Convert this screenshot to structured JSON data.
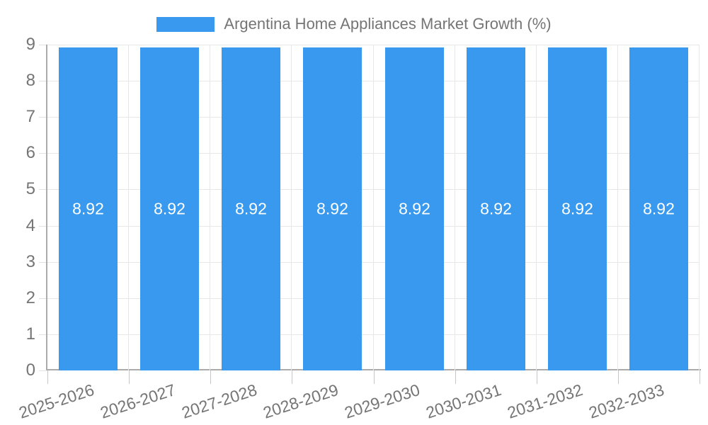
{
  "legend": {
    "label": "Argentina Home Appliances Market Growth (%)"
  },
  "colors": {
    "background": "#FFFFFF",
    "bar": "#3899EE",
    "bar_label": "#FFFFFF",
    "text": "#757575",
    "axis_line": "#ABABAB",
    "gridline": "#E7E7E7",
    "xtick": "#C6C6C6",
    "ytick": "#E2E2E2"
  },
  "chart_data": {
    "type": "bar",
    "title": "",
    "legend_entries": [
      "Argentina Home Appliances Market Growth (%)"
    ],
    "legend_position": "top-center",
    "categories": [
      "2025-2026",
      "2026-2027",
      "2027-2028",
      "2028-2029",
      "2029-2030",
      "2030-2031",
      "2031-2032",
      "2032-2033"
    ],
    "values": [
      8.92,
      8.92,
      8.92,
      8.92,
      8.92,
      8.92,
      8.92,
      8.92
    ],
    "value_labels": [
      "8.92",
      "8.92",
      "8.92",
      "8.92",
      "8.92",
      "8.92",
      "8.92",
      "8.92"
    ],
    "xlabel": "",
    "ylabel": "",
    "ylim": [
      0,
      9
    ],
    "yticks": [
      0,
      1,
      2,
      3,
      4,
      5,
      6,
      7,
      8,
      9
    ],
    "grid": true,
    "x_tick_rotation_deg": -18,
    "bar_value_position": "center"
  }
}
